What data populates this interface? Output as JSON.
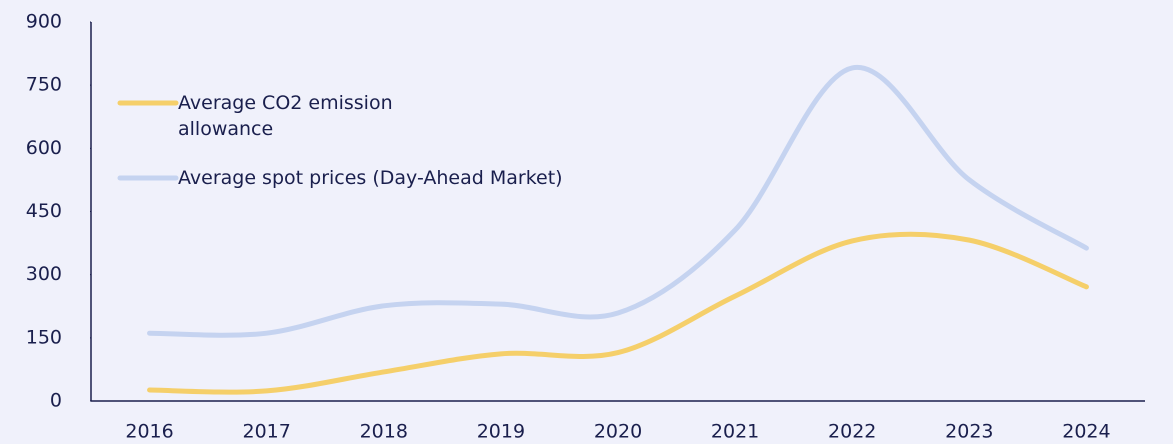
{
  "chart_data": {
    "type": "line",
    "categories": [
      "2016",
      "2017",
      "2018",
      "2019",
      "2020",
      "2021",
      "2022",
      "2023",
      "2024"
    ],
    "series": [
      {
        "name": "Average CO2 emission allowance",
        "color": "#f5cf6a",
        "values": [
          26,
          24,
          69,
          112,
          115,
          249,
          380,
          382,
          271
        ]
      },
      {
        "name": "Average spot prices (Day-Ahead Market)",
        "color": "#c5d3f0",
        "values": [
          161,
          161,
          226,
          230,
          209,
          406,
          791,
          525,
          363
        ]
      }
    ],
    "ylim": [
      0,
      900
    ],
    "yticks": [
      0,
      150,
      300,
      450,
      600,
      750,
      900
    ],
    "legend": "upper left"
  }
}
